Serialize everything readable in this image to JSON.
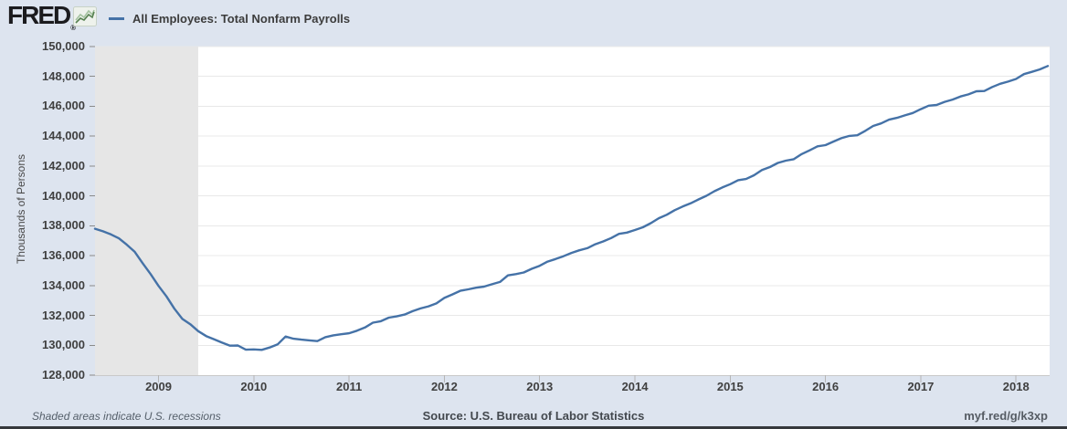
{
  "header": {
    "logo_text": "FRED",
    "registered_mark": "®",
    "legend_label": "All Employees: Total Nonfarm Payrolls"
  },
  "icons": {
    "fred_sparkline": "green zigzag line-chart icon",
    "legend_swatch": "blue horizontal line segment"
  },
  "footer": {
    "recession_note": "Shaded areas indicate U.S. recessions",
    "source": "Source: U.S. Bureau of Labor Statistics",
    "short_url": "myf.red/g/k3xp"
  },
  "colors": {
    "page_background": "#dde4ef",
    "plot_background": "#ffffff",
    "line": "#4572a7",
    "recession_band": "#e6e6e6",
    "gridline": "#e8e8e8",
    "axis": "#c9c9c9",
    "tick_text": "#404040",
    "logo_text": "#1b1b1e",
    "icon_green": "#568050"
  },
  "chart_data": {
    "type": "line",
    "title": "All Employees: Total Nonfarm Payrolls",
    "ylabel": "Thousands of Persons",
    "xlabel": "",
    "frequency": "monthly",
    "x_start": "2008-05",
    "x_end": "2018-05",
    "ylim": [
      128000,
      150000
    ],
    "grid": true,
    "legend_position": "top-left",
    "y_ticks": [
      128000,
      130000,
      132000,
      134000,
      136000,
      138000,
      140000,
      142000,
      144000,
      146000,
      148000,
      150000
    ],
    "y_tick_labels": [
      "128,000",
      "130,000",
      "132,000",
      "134,000",
      "136,000",
      "138,000",
      "140,000",
      "142,000",
      "144,000",
      "146,000",
      "148,000",
      "150,000"
    ],
    "x_ticks": [
      2009,
      2010,
      2011,
      2012,
      2013,
      2014,
      2015,
      2016,
      2017,
      2018
    ],
    "recession": {
      "start": "2007-12",
      "end": "2009-06"
    },
    "recession_color": "#e6e6e6",
    "series": [
      {
        "name": "All Employees: Total Nonfarm Payrolls",
        "color": "#4572a7",
        "values": [
          137803,
          137631,
          137421,
          137162,
          136732,
          136259,
          135493,
          134774,
          133976,
          133275,
          132449,
          131765,
          131411,
          130944,
          130617,
          130401,
          130174,
          129976,
          129987,
          129703,
          129721,
          129693,
          129849,
          130060,
          130582,
          130440,
          130380,
          130328,
          130278,
          130543,
          130665,
          130736,
          130807,
          130975,
          131187,
          131511,
          131613,
          131851,
          131934,
          132056,
          132285,
          132470,
          132609,
          132805,
          133172,
          133404,
          133647,
          133744,
          133854,
          133929,
          134087,
          134237,
          134681,
          134767,
          134875,
          135117,
          135324,
          135605,
          135771,
          135963,
          136181,
          136359,
          136498,
          136765,
          136951,
          137179,
          137462,
          137546,
          137714,
          137902,
          138175,
          138505,
          138735,
          139041,
          139290,
          139503,
          139766,
          140009,
          140312,
          140565,
          140786,
          141051,
          141135,
          141386,
          141730,
          141936,
          142211,
          142361,
          142461,
          142801,
          143052,
          143323,
          143399,
          143636,
          143862,
          144016,
          144059,
          144356,
          144681,
          144857,
          145106,
          145230,
          145394,
          145549,
          145806,
          146038,
          146088,
          146295,
          146450,
          146660,
          146799,
          147007,
          147021,
          147292,
          147508,
          147654,
          147830,
          148154,
          148309,
          148472,
          148697
        ]
      }
    ]
  }
}
